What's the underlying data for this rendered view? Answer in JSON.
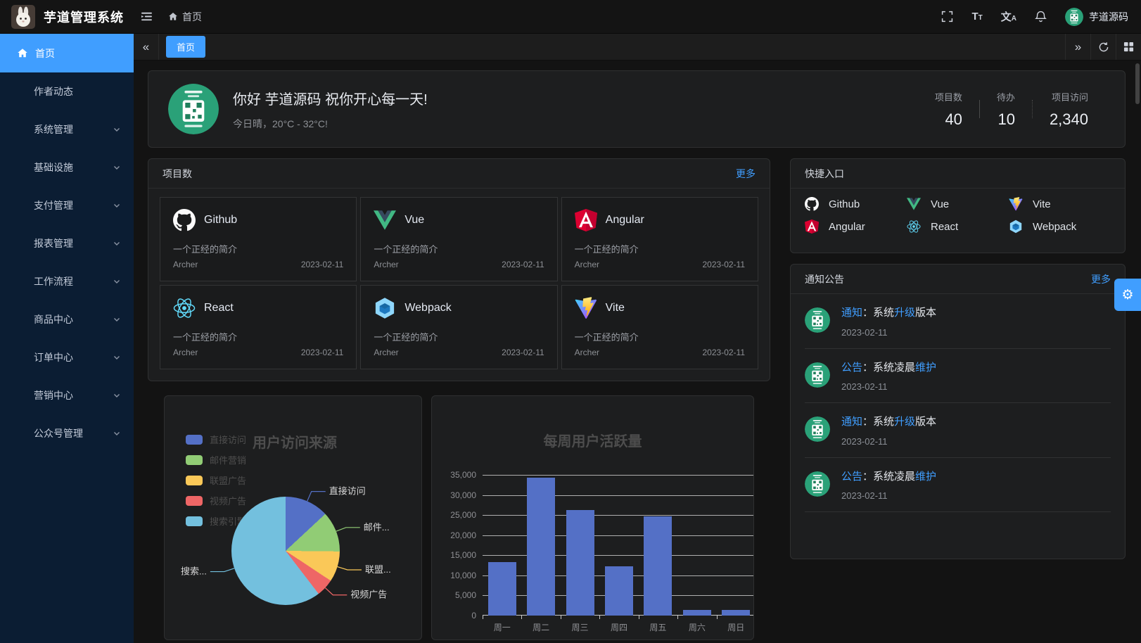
{
  "app": {
    "title": "芋道管理系统",
    "user": "芋道源码",
    "breadcrumb_home": "首页"
  },
  "header_icons": [
    "fold-icon",
    "home-icon",
    "fullscreen-icon",
    "font-size-icon",
    "locale-icon",
    "bell-icon"
  ],
  "accent_color": "#409eff",
  "tabbar": {
    "collapse_glyph": "«",
    "expand_glyph": "»",
    "tabs": [
      {
        "label": "首页",
        "active": true
      }
    ]
  },
  "sidebar": {
    "items": [
      {
        "label": "首页",
        "icon": "home",
        "active": true,
        "children": false
      },
      {
        "label": "作者动态",
        "children": false
      },
      {
        "label": "系统管理",
        "children": true
      },
      {
        "label": "基础设施",
        "children": true
      },
      {
        "label": "支付管理",
        "children": true
      },
      {
        "label": "报表管理",
        "children": true
      },
      {
        "label": "工作流程",
        "children": true
      },
      {
        "label": "商品中心",
        "children": true
      },
      {
        "label": "订单中心",
        "children": true
      },
      {
        "label": "营销中心",
        "children": true
      },
      {
        "label": "公众号管理",
        "children": true
      }
    ]
  },
  "banner": {
    "greeting": "你好 芋道源码 祝你开心每一天!",
    "weather": "今日晴，20°C - 32°C!",
    "stats": [
      {
        "label": "项目数",
        "value": "40"
      },
      {
        "label": "待办",
        "value": "10"
      },
      {
        "label": "项目访问",
        "value": "2,340"
      }
    ]
  },
  "projects": {
    "title": "项目数",
    "more": "更多",
    "items": [
      {
        "name": "Github",
        "icon": "github",
        "desc": "一个正经的简介",
        "author": "Archer",
        "date": "2023-02-11"
      },
      {
        "name": "Vue",
        "icon": "vue",
        "desc": "一个正经的简介",
        "author": "Archer",
        "date": "2023-02-11"
      },
      {
        "name": "Angular",
        "icon": "angular",
        "desc": "一个正经的简介",
        "author": "Archer",
        "date": "2023-02-11"
      },
      {
        "name": "React",
        "icon": "react",
        "desc": "一个正经的简介",
        "author": "Archer",
        "date": "2023-02-11"
      },
      {
        "name": "Webpack",
        "icon": "webpack",
        "desc": "一个正经的简介",
        "author": "Archer",
        "date": "2023-02-11"
      },
      {
        "name": "Vite",
        "icon": "vite",
        "desc": "一个正经的简介",
        "author": "Archer",
        "date": "2023-02-11"
      }
    ]
  },
  "shortcuts": {
    "title": "快捷入口",
    "items": [
      {
        "name": "Github",
        "icon": "github"
      },
      {
        "name": "Vue",
        "icon": "vue"
      },
      {
        "name": "Vite",
        "icon": "vite"
      },
      {
        "name": "Angular",
        "icon": "angular"
      },
      {
        "name": "React",
        "icon": "react"
      },
      {
        "name": "Webpack",
        "icon": "webpack"
      }
    ]
  },
  "notices": {
    "title": "通知公告",
    "more": "更多",
    "items": [
      {
        "parts": [
          {
            "t": "通知",
            "hl": true
          },
          {
            "t": "：系统",
            "hl": false
          },
          {
            "t": "升级",
            "hl": true
          },
          {
            "t": "版本",
            "hl": false
          }
        ],
        "date": "2023-02-11"
      },
      {
        "parts": [
          {
            "t": "公告",
            "hl": true
          },
          {
            "t": "：系统凌晨",
            "hl": false
          },
          {
            "t": "维护",
            "hl": true
          }
        ],
        "date": "2023-02-11"
      },
      {
        "parts": [
          {
            "t": "通知",
            "hl": true
          },
          {
            "t": "：系统",
            "hl": false
          },
          {
            "t": "升级",
            "hl": true
          },
          {
            "t": "版本",
            "hl": false
          }
        ],
        "date": "2023-02-11"
      },
      {
        "parts": [
          {
            "t": "公告",
            "hl": true
          },
          {
            "t": "：系统凌晨",
            "hl": false
          },
          {
            "t": "维护",
            "hl": true
          }
        ],
        "date": "2023-02-11"
      }
    ]
  },
  "chart_data": [
    {
      "type": "pie",
      "title": "用户访问来源",
      "labels": [
        "直接访问",
        "邮件营销",
        "联盟广告",
        "视频广告",
        "搜索引擎"
      ],
      "label_display": [
        "直接访问",
        "邮件...",
        "联盟...",
        "视频广告",
        "搜索..."
      ],
      "values": [
        335,
        310,
        234,
        135,
        1548
      ],
      "colors": [
        "#5470c6",
        "#91cc75",
        "#fac858",
        "#ee6666",
        "#73c0de"
      ],
      "legend_position": "top-left"
    },
    {
      "type": "bar",
      "title": "每周用户活跃量",
      "categories": [
        "周一",
        "周二",
        "周三",
        "周四",
        "周五",
        "周六",
        "周日"
      ],
      "values": [
        13253,
        34235,
        26321,
        12340,
        24643,
        1322,
        1324
      ],
      "ylim": [
        0,
        35000
      ],
      "ytick_step": 5000,
      "bar_color": "#5470c6",
      "grid": true
    }
  ]
}
